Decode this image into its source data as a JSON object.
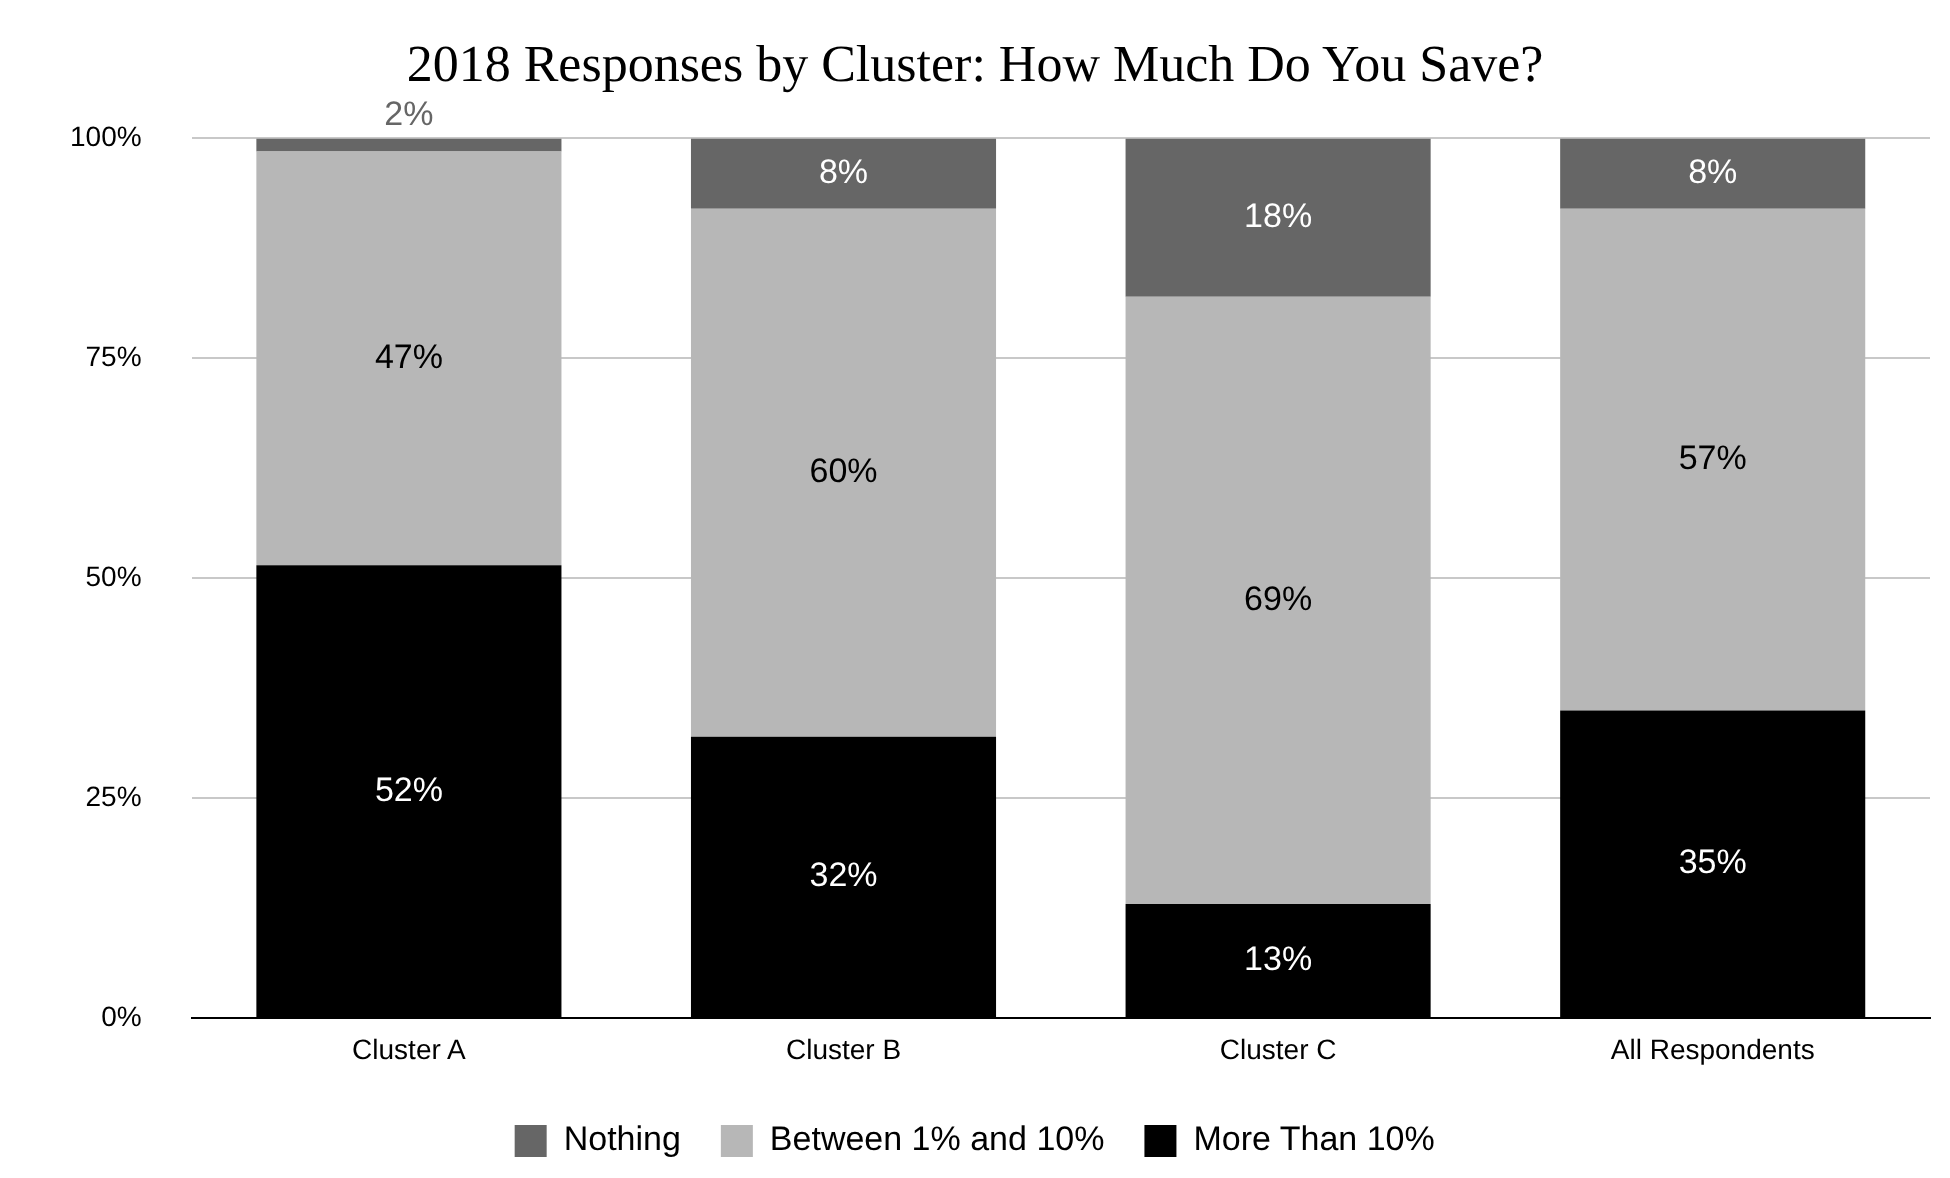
{
  "chart_data": {
    "type": "bar",
    "stacked": true,
    "title": "2018 Responses by Cluster: How Much Do You Save?",
    "categories": [
      "Cluster A",
      "Cluster B",
      "Cluster C",
      "All Respondents"
    ],
    "series": [
      {
        "name": "More Than 10%",
        "color": "#000000",
        "values": [
          51.5,
          32,
          13,
          35
        ],
        "value_labels": [
          "52%",
          "32%",
          "13%",
          "35%"
        ]
      },
      {
        "name": "Between 1% and 10%",
        "color": "#b7b7b7",
        "values": [
          47,
          60,
          69,
          57
        ],
        "value_labels": [
          "47%",
          "60%",
          "69%",
          "57%"
        ]
      },
      {
        "name": "Nothing",
        "color": "#666666",
        "values": [
          1.5,
          8,
          18,
          8
        ],
        "value_labels": [
          "2%",
          "8%",
          "18%",
          "8%"
        ]
      }
    ],
    "ylim": [
      0,
      100
    ],
    "yticks": [
      {
        "value": 0,
        "label": "0%"
      },
      {
        "value": 25,
        "label": "25%"
      },
      {
        "value": 50,
        "label": "50%"
      },
      {
        "value": 75,
        "label": "75%"
      },
      {
        "value": 100,
        "label": "100%"
      }
    ],
    "grid": "y",
    "legend": "bottom"
  }
}
